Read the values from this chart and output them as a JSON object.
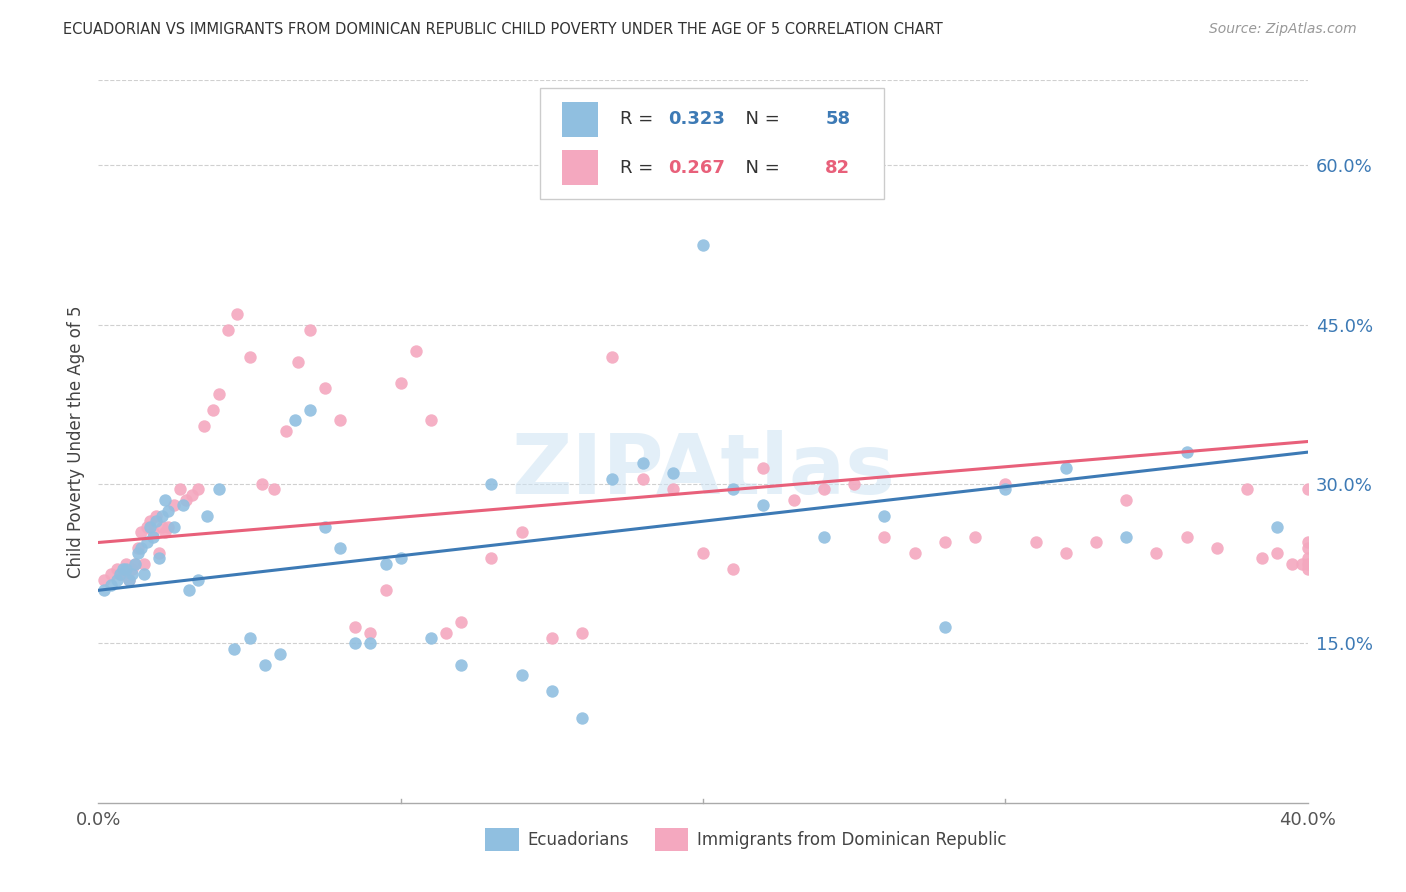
{
  "title": "ECUADORIAN VS IMMIGRANTS FROM DOMINICAN REPUBLIC CHILD POVERTY UNDER THE AGE OF 5 CORRELATION CHART",
  "source": "Source: ZipAtlas.com",
  "ylabel": "Child Poverty Under the Age of 5",
  "ytick_vals": [
    0.15,
    0.3,
    0.45,
    0.6
  ],
  "xlim": [
    0.0,
    0.4
  ],
  "ylim": [
    0.0,
    0.68
  ],
  "blue_color": "#90bfe0",
  "pink_color": "#f4a8bf",
  "blue_line_color": "#3d7ab5",
  "pink_line_color": "#e8607a",
  "R_blue": 0.323,
  "N_blue": 58,
  "R_pink": 0.267,
  "N_pink": 82,
  "legend_label_blue": "Ecuadorians",
  "legend_label_pink": "Immigrants from Dominican Republic",
  "watermark": "ZIPAtlas",
  "blue_scatter_x": [
    0.002,
    0.004,
    0.006,
    0.007,
    0.008,
    0.009,
    0.01,
    0.011,
    0.012,
    0.013,
    0.014,
    0.015,
    0.016,
    0.017,
    0.018,
    0.019,
    0.02,
    0.021,
    0.022,
    0.023,
    0.025,
    0.028,
    0.03,
    0.033,
    0.036,
    0.04,
    0.045,
    0.05,
    0.055,
    0.06,
    0.065,
    0.07,
    0.075,
    0.08,
    0.085,
    0.09,
    0.095,
    0.1,
    0.11,
    0.12,
    0.13,
    0.14,
    0.15,
    0.16,
    0.17,
    0.18,
    0.19,
    0.2,
    0.21,
    0.22,
    0.24,
    0.26,
    0.28,
    0.3,
    0.32,
    0.34,
    0.36,
    0.39
  ],
  "blue_scatter_y": [
    0.2,
    0.205,
    0.21,
    0.215,
    0.22,
    0.22,
    0.21,
    0.215,
    0.225,
    0.235,
    0.24,
    0.215,
    0.245,
    0.26,
    0.25,
    0.265,
    0.23,
    0.27,
    0.285,
    0.275,
    0.26,
    0.28,
    0.2,
    0.21,
    0.27,
    0.295,
    0.145,
    0.155,
    0.13,
    0.14,
    0.36,
    0.37,
    0.26,
    0.24,
    0.15,
    0.15,
    0.225,
    0.23,
    0.155,
    0.13,
    0.3,
    0.12,
    0.105,
    0.08,
    0.305,
    0.32,
    0.31,
    0.525,
    0.295,
    0.28,
    0.25,
    0.27,
    0.165,
    0.295,
    0.315,
    0.25,
    0.33,
    0.26
  ],
  "pink_scatter_x": [
    0.002,
    0.004,
    0.006,
    0.007,
    0.008,
    0.009,
    0.01,
    0.011,
    0.012,
    0.013,
    0.014,
    0.015,
    0.016,
    0.017,
    0.018,
    0.019,
    0.02,
    0.021,
    0.022,
    0.023,
    0.025,
    0.027,
    0.029,
    0.031,
    0.033,
    0.035,
    0.038,
    0.04,
    0.043,
    0.046,
    0.05,
    0.054,
    0.058,
    0.062,
    0.066,
    0.07,
    0.075,
    0.08,
    0.085,
    0.09,
    0.095,
    0.1,
    0.105,
    0.11,
    0.115,
    0.12,
    0.13,
    0.14,
    0.15,
    0.16,
    0.17,
    0.18,
    0.19,
    0.2,
    0.21,
    0.22,
    0.23,
    0.24,
    0.25,
    0.26,
    0.27,
    0.28,
    0.29,
    0.3,
    0.31,
    0.32,
    0.33,
    0.34,
    0.35,
    0.36,
    0.37,
    0.38,
    0.385,
    0.39,
    0.395,
    0.398,
    0.4,
    0.4,
    0.4,
    0.4,
    0.4,
    0.4
  ],
  "pink_scatter_y": [
    0.21,
    0.215,
    0.22,
    0.215,
    0.215,
    0.225,
    0.21,
    0.22,
    0.225,
    0.24,
    0.255,
    0.225,
    0.26,
    0.265,
    0.255,
    0.27,
    0.235,
    0.26,
    0.255,
    0.26,
    0.28,
    0.295,
    0.285,
    0.29,
    0.295,
    0.355,
    0.37,
    0.385,
    0.445,
    0.46,
    0.42,
    0.3,
    0.295,
    0.35,
    0.415,
    0.445,
    0.39,
    0.36,
    0.165,
    0.16,
    0.2,
    0.395,
    0.425,
    0.36,
    0.16,
    0.17,
    0.23,
    0.255,
    0.155,
    0.16,
    0.42,
    0.305,
    0.295,
    0.235,
    0.22,
    0.315,
    0.285,
    0.295,
    0.3,
    0.25,
    0.235,
    0.245,
    0.25,
    0.3,
    0.245,
    0.235,
    0.245,
    0.285,
    0.235,
    0.25,
    0.24,
    0.295,
    0.23,
    0.235,
    0.225,
    0.225,
    0.24,
    0.23,
    0.225,
    0.22,
    0.295,
    0.245
  ],
  "blue_line_x0": 0.0,
  "blue_line_x1": 0.4,
  "blue_line_y0": 0.2,
  "blue_line_y1": 0.33,
  "pink_line_x0": 0.0,
  "pink_line_x1": 0.4,
  "pink_line_y0": 0.245,
  "pink_line_y1": 0.34
}
